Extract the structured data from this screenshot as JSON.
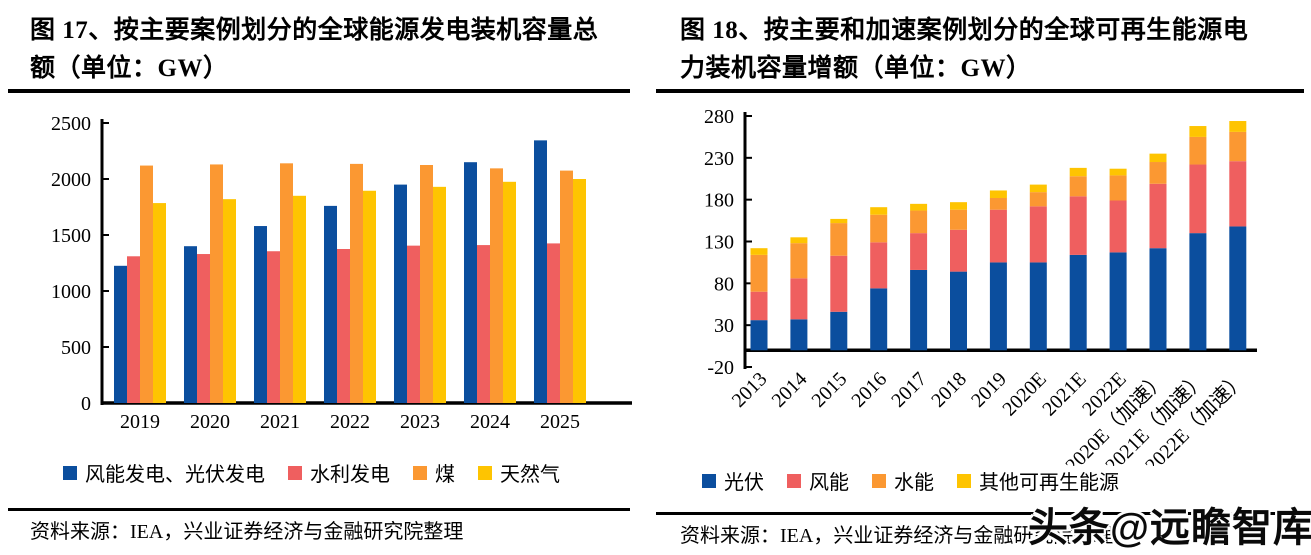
{
  "left_panel": {
    "title_lines": [
      "图 17、按主要案例划分的全球能源发电装机容量总",
      "额（单位：GW）"
    ],
    "title": "图 17、按主要案例划分的全球能源发电装机容量总额（单位：GW）",
    "source": "资料来源：IEA，兴业证券经济与金融研究院整理"
  },
  "right_panel": {
    "title_lines": [
      "图 18、按主要和加速案例划分的全球可再生能源电",
      "力装机容量增额（单位：GW）"
    ],
    "title": "图 18、按主要和加速案例划分的全球可再生能源电力装机容量增额（单位：GW）",
    "source": "资料来源：IEA，兴业证券经济与金融研究院整理"
  },
  "watermark": "头条@远瞻智库",
  "colors": {
    "blue": "#0B4E9E",
    "red": "#EF5F5F",
    "orange": "#FB9832",
    "yellow": "#FEC401",
    "axis": "#000000"
  },
  "chart_data": [
    {
      "type": "bar",
      "title": "图 17、按主要案例划分的全球能源发电装机容量总额（单位：GW）",
      "xlabel": "",
      "ylabel": "GW",
      "ylim": [
        0,
        2500
      ],
      "yticks": [
        0,
        500,
        1000,
        1500,
        2000,
        2500
      ],
      "grid": false,
      "legend_position": "bottom",
      "categories": [
        "2019",
        "2020",
        "2021",
        "2022",
        "2023",
        "2024",
        "2025"
      ],
      "series": [
        {
          "name": "风能发电、光伏发电",
          "color": "#0B4E9E",
          "values": [
            1225,
            1400,
            1580,
            1760,
            1950,
            2150,
            2345
          ]
        },
        {
          "name": "水利发电",
          "color": "#EF5F5F",
          "values": [
            1310,
            1330,
            1355,
            1375,
            1405,
            1410,
            1425
          ]
        },
        {
          "name": "煤",
          "color": "#FB9832",
          "values": [
            2120,
            2130,
            2140,
            2135,
            2125,
            2095,
            2075
          ]
        },
        {
          "name": "天然气",
          "color": "#FEC401",
          "values": [
            1785,
            1820,
            1850,
            1895,
            1930,
            1975,
            2000
          ]
        }
      ]
    },
    {
      "type": "stacked-bar",
      "title": "图 18、按主要和加速案例划分的全球可再生能源电力装机容量增额（单位：GW）",
      "xlabel": "",
      "ylabel": "GW",
      "ylim": [
        -20,
        280
      ],
      "yticks": [
        -20,
        30,
        80,
        130,
        180,
        230,
        280
      ],
      "grid": false,
      "legend_position": "bottom",
      "categories": [
        "2013",
        "2014",
        "2015",
        "2016",
        "2017",
        "2018",
        "2019",
        "2020E",
        "2021E",
        "2022E",
        "2020E（加速）",
        "2021E（加速）",
        "2022E（加速）"
      ],
      "series": [
        {
          "name": "光伏",
          "color": "#0B4E9E",
          "values": [
            36,
            37,
            46,
            74,
            96,
            94,
            105,
            105,
            114,
            117,
            122,
            140,
            148
          ]
        },
        {
          "name": "风能",
          "color": "#EF5F5F",
          "values": [
            34,
            49,
            67,
            55,
            44,
            50,
            63,
            67,
            70,
            62,
            77,
            82,
            78
          ]
        },
        {
          "name": "水能",
          "color": "#FB9832",
          "values": [
            44,
            42,
            39,
            33,
            27,
            24,
            14,
            17,
            24,
            30,
            26,
            33,
            35
          ]
        },
        {
          "name": "其他可再生能源",
          "color": "#FEC401",
          "values": [
            8,
            7,
            5,
            9,
            8,
            9,
            9,
            9,
            10,
            8,
            10,
            13,
            13
          ]
        }
      ]
    }
  ]
}
